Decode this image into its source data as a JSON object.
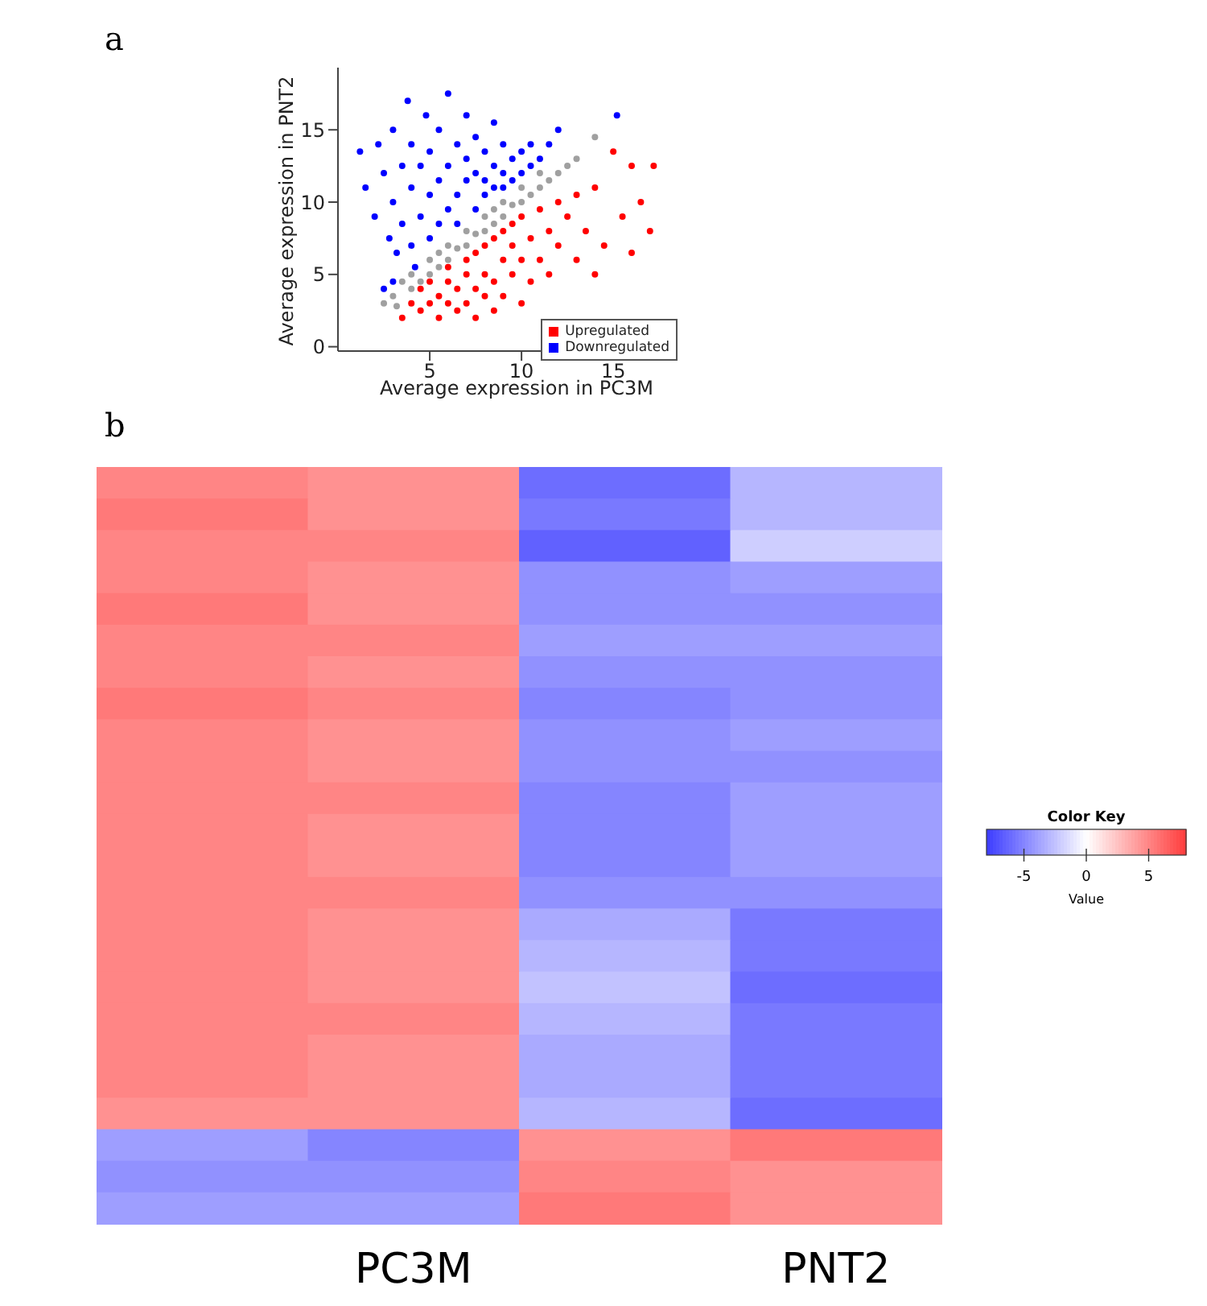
{
  "chart_data": [
    {
      "type": "scatter",
      "annotations": [
        "a"
      ],
      "xlabel": "Average expression in PC3M",
      "ylabel": "Average expression in PNT2",
      "xlim": [
        0,
        18.5
      ],
      "ylim": [
        -0.3,
        19.3
      ],
      "xticks": [
        5,
        10,
        15
      ],
      "yticks": [
        0,
        5,
        10,
        15
      ],
      "legend": "bottom right",
      "grid": false,
      "marker": "circle",
      "series": [
        {
          "name": "Upregulated",
          "color": "#ff0000",
          "x": [
            3.5,
            4,
            4.5,
            4.5,
            5,
            5,
            5.5,
            5.5,
            6,
            6,
            6,
            6.5,
            6.5,
            7,
            7,
            7,
            7.5,
            7.5,
            7.5,
            8,
            8,
            8,
            8.5,
            8.5,
            8.5,
            9,
            9,
            9,
            9.5,
            9.5,
            9.5,
            10,
            10,
            10,
            10.5,
            10.5,
            11,
            11,
            11.5,
            11.5,
            12,
            12,
            12.5,
            13,
            13,
            13.5,
            14,
            14,
            14.5,
            15,
            15.5,
            16,
            16.5,
            17,
            17.2,
            16
          ],
          "values": [
            2,
            3,
            2.5,
            4,
            3,
            4.5,
            2,
            3.5,
            3,
            4.5,
            5.5,
            2.5,
            4,
            3,
            5,
            6,
            2,
            4,
            6.5,
            3.5,
            5,
            7,
            2.5,
            4.5,
            7.5,
            3.5,
            6,
            8,
            5,
            7,
            8.5,
            3,
            6,
            9,
            4.5,
            7.5,
            6,
            9.5,
            8,
            5,
            10,
            7,
            9,
            6,
            10.5,
            8,
            5,
            11,
            7,
            13.5,
            9,
            12.5,
            10,
            8,
            12.5,
            6.5
          ]
        },
        {
          "name": "Downregulated",
          "color": "#0000ff",
          "x": [
            1.2,
            1.5,
            2,
            2.2,
            2.5,
            2.8,
            3,
            3,
            3.2,
            3.5,
            3.5,
            3.8,
            4,
            4,
            4,
            4.2,
            4.5,
            4.5,
            4.8,
            5,
            5,
            5,
            5.5,
            5.5,
            5.5,
            6,
            6,
            6,
            6.5,
            6.5,
            6.5,
            7,
            7,
            7,
            7.5,
            7.5,
            7.5,
            8,
            8,
            8,
            8.5,
            8.5,
            8.5,
            9,
            9,
            9,
            9.5,
            9.5,
            10,
            10,
            10.5,
            10.5,
            11,
            11.5,
            12,
            15.2,
            3,
            2.5
          ],
          "values": [
            13.5,
            11,
            9,
            14,
            12,
            7.5,
            10,
            15,
            6.5,
            12.5,
            8.5,
            17,
            11,
            7,
            14,
            5.5,
            9,
            12.5,
            16,
            10.5,
            7.5,
            13.5,
            8.5,
            11.5,
            15,
            9.5,
            12.5,
            17.5,
            10.5,
            14,
            8.5,
            11.5,
            13,
            16,
            9.5,
            12,
            14.5,
            10.5,
            11.5,
            13.5,
            11,
            12.5,
            15.5,
            11,
            12,
            14,
            11.5,
            13,
            12,
            13.5,
            12.5,
            14,
            13,
            14,
            15,
            16,
            4.5,
            4
          ]
        },
        {
          "color": "#a0a0a0",
          "x": [
            2.5,
            3,
            3.2,
            3.5,
            4,
            4,
            4.5,
            5,
            5,
            5.5,
            5.5,
            6,
            6,
            6.5,
            7,
            7,
            7.5,
            8,
            8,
            8.5,
            8.5,
            9,
            9,
            9.5,
            10,
            10,
            10.5,
            11,
            11,
            11.5,
            12,
            12.5,
            13,
            14
          ],
          "values": [
            3,
            3.5,
            2.8,
            4.5,
            4,
            5,
            4.5,
            5,
            6,
            5.5,
            6.5,
            6,
            7,
            6.8,
            7,
            8,
            7.8,
            8,
            9,
            8.5,
            9.5,
            9,
            10,
            9.8,
            10,
            11,
            10.5,
            11,
            12,
            11.5,
            12,
            12.5,
            13,
            14.5
          ]
        }
      ]
    },
    {
      "type": "heatmap",
      "annotations": [
        "b"
      ],
      "categories": [
        null,
        "PC3M",
        null,
        "PNT2"
      ],
      "y_categories": [
        null,
        null,
        null,
        null,
        null,
        null,
        null,
        null,
        null,
        null,
        null,
        null,
        null,
        null,
        null,
        null,
        null,
        null,
        null,
        null,
        null,
        null,
        null,
        null
      ],
      "legend_title": "Color Key",
      "clabel": "Value",
      "clim": [
        -8,
        8
      ],
      "cticks": [
        -5,
        0,
        5
      ],
      "cells": [
        [
          5,
          4.5,
          -6,
          -3
        ],
        [
          5.5,
          4.5,
          -5.5,
          -3
        ],
        [
          5,
          5,
          -6.5,
          -2
        ],
        [
          5,
          4.5,
          -4.5,
          -4
        ],
        [
          5.5,
          4.5,
          -4.5,
          -4.5
        ],
        [
          5,
          5,
          -4,
          -4
        ],
        [
          5,
          4.5,
          -4.5,
          -4.5
        ],
        [
          5.5,
          5,
          -5,
          -4.5
        ],
        [
          5,
          4.5,
          -4.5,
          -4
        ],
        [
          5,
          4.5,
          -4.5,
          -4.5
        ],
        [
          5,
          5,
          -5,
          -4
        ],
        [
          5,
          4.5,
          -5,
          -4
        ],
        [
          5,
          4.5,
          -5,
          -4
        ],
        [
          5,
          5,
          -4.5,
          -4.5
        ],
        [
          5,
          4.5,
          -3.5,
          -5.5
        ],
        [
          5,
          4.5,
          -3,
          -5.5
        ],
        [
          5,
          4.5,
          -2.5,
          -6
        ],
        [
          5,
          5,
          -3,
          -5.5
        ],
        [
          5,
          4.5,
          -3.5,
          -5.5
        ],
        [
          5,
          4.5,
          -3.5,
          -5.5
        ],
        [
          4.5,
          4.5,
          -3,
          -6
        ],
        [
          -4,
          -5,
          4.5,
          5.5
        ],
        [
          -4.5,
          -4.5,
          5,
          4.5
        ],
        [
          -4,
          -4,
          5.5,
          4.5
        ]
      ]
    }
  ]
}
